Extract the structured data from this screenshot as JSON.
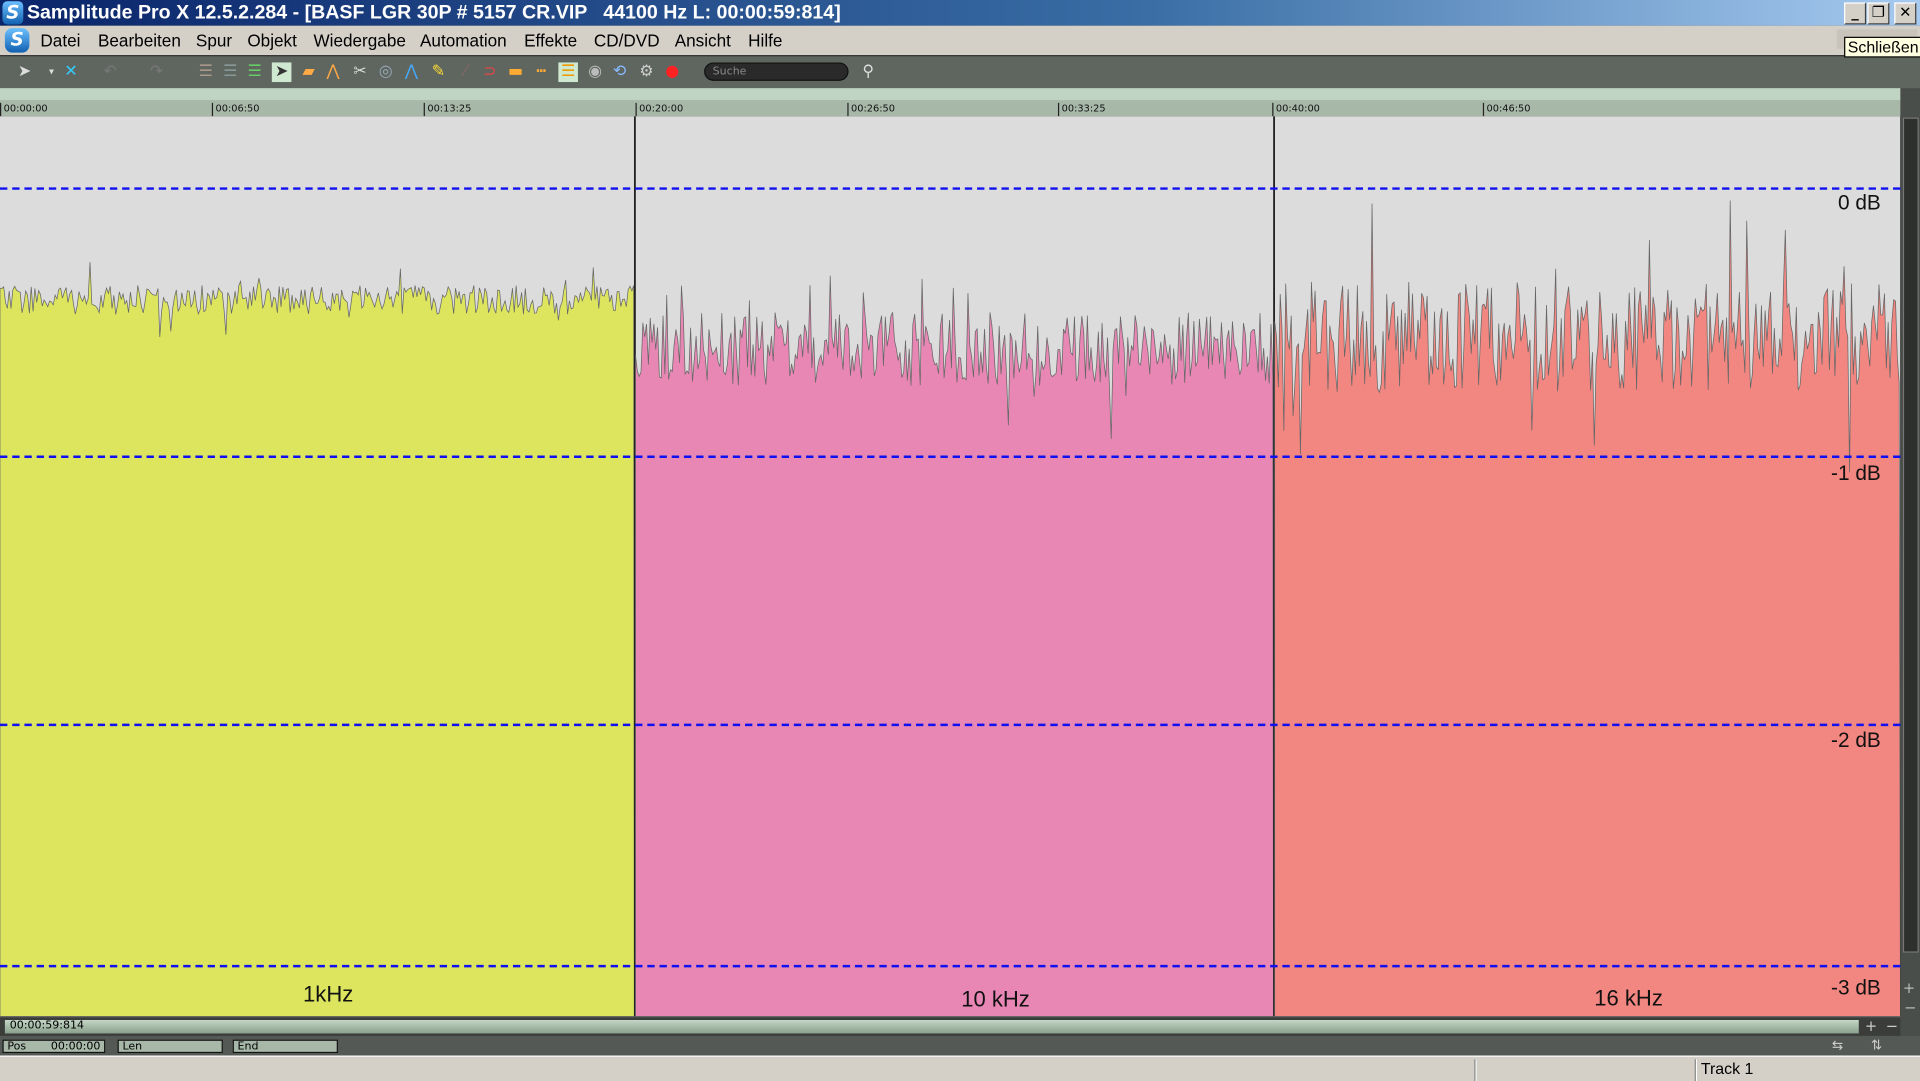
{
  "window": {
    "title": "Samplitude Pro X 12.5.2.284 - [BASF LGR 30P # 5157 CR.VIP   44100 Hz L: 00:00:59:814]",
    "logo_text": "S",
    "minimize": "_",
    "restore": "❐",
    "close": "✕",
    "tooltip": "Schließen"
  },
  "menu": [
    "Datei",
    "Bearbeiten",
    "Spur",
    "Objekt",
    "Wiedergabe",
    "Automation",
    "Effekte",
    "CD/DVD",
    "Ansicht",
    "Hilfe"
  ],
  "toolbar": {
    "icons": [
      "pointer-icon",
      "dropdown-icon",
      "crossfade-icon",
      "undo-icon",
      "redo-icon",
      "tracks-icon",
      "tracks2-icon",
      "tracks3-icon",
      "select-icon",
      "range-icon",
      "curve-icon",
      "cut-icon",
      "zoom-icon",
      "envelope-icon",
      "pencil-icon",
      "scrub-icon",
      "snap-icon",
      "object-icon",
      "dots-icon",
      "lanes-icon",
      "search-q-icon",
      "loop-icon",
      "settings-icon",
      "record-icon"
    ],
    "search_placeholder": "Suche"
  },
  "ruler": {
    "ticks": [
      "00:00:00",
      "00:06:50",
      "00:13:25",
      "00:20:00",
      "00:26:50",
      "00:33:25",
      "00:40:00",
      "00:46:50"
    ]
  },
  "track": {
    "regions": [
      {
        "label": "1kHz",
        "color": "#dde55e"
      },
      {
        "label": "10 kHz",
        "color": "#e887b4"
      },
      {
        "label": "16 kHz",
        "color": "#f28680"
      }
    ],
    "db_lines": [
      "0 dB",
      "-1 dB",
      "-2 dB",
      "-3 dB"
    ],
    "grid_color": "#1010f0"
  },
  "transport": {
    "scroll_time": "00:00:59:814",
    "pos_label": "Pos",
    "pos_value": "00:00:00",
    "len_label": "Len",
    "end_label": "End"
  },
  "status": {
    "track": "Track 1"
  }
}
